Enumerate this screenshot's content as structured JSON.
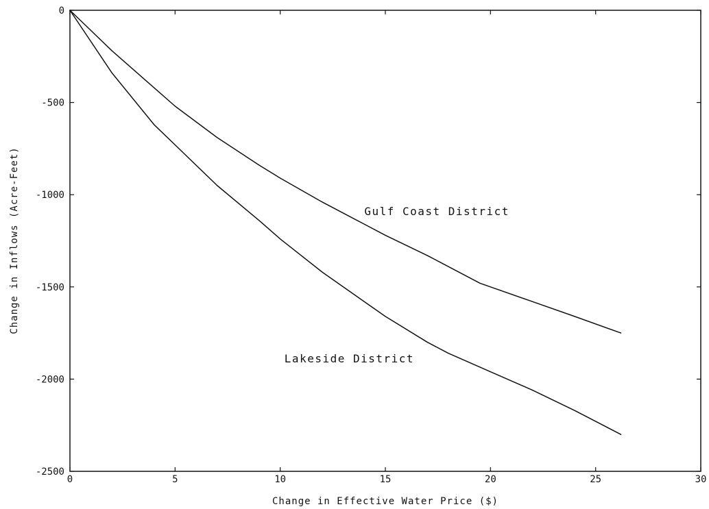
{
  "chart_data": {
    "type": "line",
    "title": "",
    "xlabel": "Change in Effective Water Price ($)",
    "ylabel": "Change in Inflows (Acre-Feet)",
    "xlim": [
      0,
      30
    ],
    "ylim": [
      -2500,
      0
    ],
    "x_ticks": [
      "0",
      "5",
      "10",
      "15",
      "20",
      "25",
      "30"
    ],
    "y_ticks": [
      "0",
      "-500",
      "-1000",
      "-1500",
      "-2000",
      "-2500"
    ],
    "grid": false,
    "series": [
      {
        "name": "Gulf Coast District",
        "color": "#111111",
        "points": [
          [
            0,
            0
          ],
          [
            2,
            -220
          ],
          [
            4,
            -420
          ],
          [
            5,
            -520
          ],
          [
            7,
            -690
          ],
          [
            9,
            -840
          ],
          [
            10,
            -910
          ],
          [
            12,
            -1040
          ],
          [
            14,
            -1160
          ],
          [
            15,
            -1220
          ],
          [
            17,
            -1330
          ],
          [
            18,
            -1390
          ],
          [
            19.5,
            -1480
          ],
          [
            20,
            -1500
          ],
          [
            22,
            -1580
          ],
          [
            24,
            -1660
          ],
          [
            26.2,
            -1750
          ]
        ]
      },
      {
        "name": "Lakeside District",
        "color": "#111111",
        "points": [
          [
            0,
            0
          ],
          [
            2,
            -340
          ],
          [
            4,
            -620
          ],
          [
            5,
            -730
          ],
          [
            7,
            -950
          ],
          [
            9,
            -1140
          ],
          [
            10,
            -1240
          ],
          [
            12,
            -1420
          ],
          [
            14,
            -1580
          ],
          [
            15,
            -1660
          ],
          [
            17,
            -1800
          ],
          [
            18,
            -1860
          ],
          [
            20,
            -1960
          ],
          [
            22,
            -2060
          ],
          [
            24,
            -2170
          ],
          [
            26.2,
            -2300
          ]
        ]
      }
    ],
    "annotations": [
      {
        "text": "Gulf Coast District",
        "x": 14,
        "y": -1110,
        "series": "Gulf Coast District"
      },
      {
        "text": "Lakeside District",
        "x": 10.2,
        "y": -1910,
        "series": "Lakeside District"
      }
    ]
  }
}
